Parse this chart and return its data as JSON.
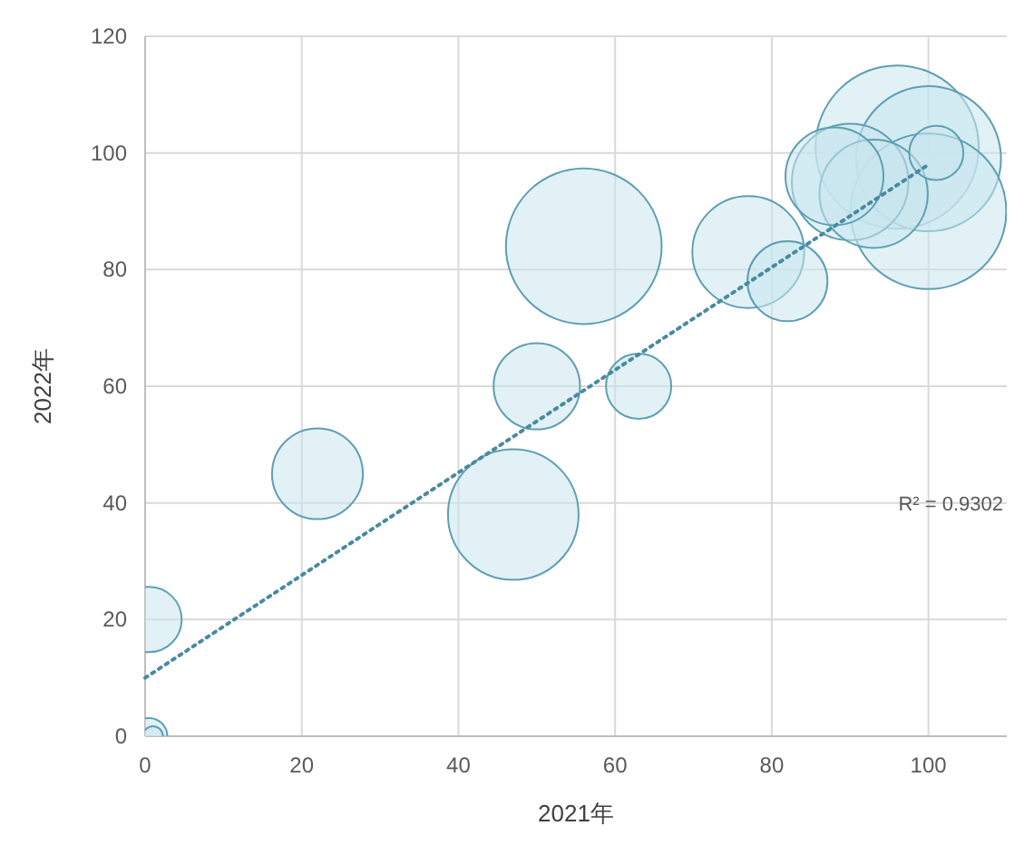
{
  "chart_data": {
    "type": "bubble",
    "xlabel": "2021年",
    "ylabel": "2022年",
    "xlim": [
      0,
      110
    ],
    "ylim": [
      0,
      120
    ],
    "xticks": [
      0,
      20,
      40,
      60,
      80,
      100
    ],
    "yticks": [
      0,
      20,
      40,
      60,
      80,
      100,
      120
    ],
    "grid": true,
    "series": [
      {
        "color": "#c9e6ef",
        "x": [
          0.5,
          0.5,
          1,
          22,
          47,
          50,
          63,
          56,
          77,
          82,
          96,
          100,
          100,
          90,
          93,
          88,
          101
        ],
        "values": [
          20,
          0,
          0,
          45,
          38,
          60,
          60,
          84,
          83,
          78,
          101,
          99,
          90,
          95,
          93,
          96,
          100
        ],
        "sizes": [
          0.16,
          0.05,
          0.015,
          0.31,
          0.64,
          0.28,
          0.16,
          0.91,
          0.47,
          0.24,
          1,
          0.79,
          0.91,
          0.51,
          0.44,
          0.36,
          0.11
        ]
      },
      {
        "type": "line",
        "color": "#4a8aa0",
        "line_style": "dotted",
        "marker": "none",
        "x": [
          0,
          100
        ],
        "values": [
          10,
          98
        ]
      }
    ],
    "annotations": [
      "R² = 0.9302"
    ]
  }
}
